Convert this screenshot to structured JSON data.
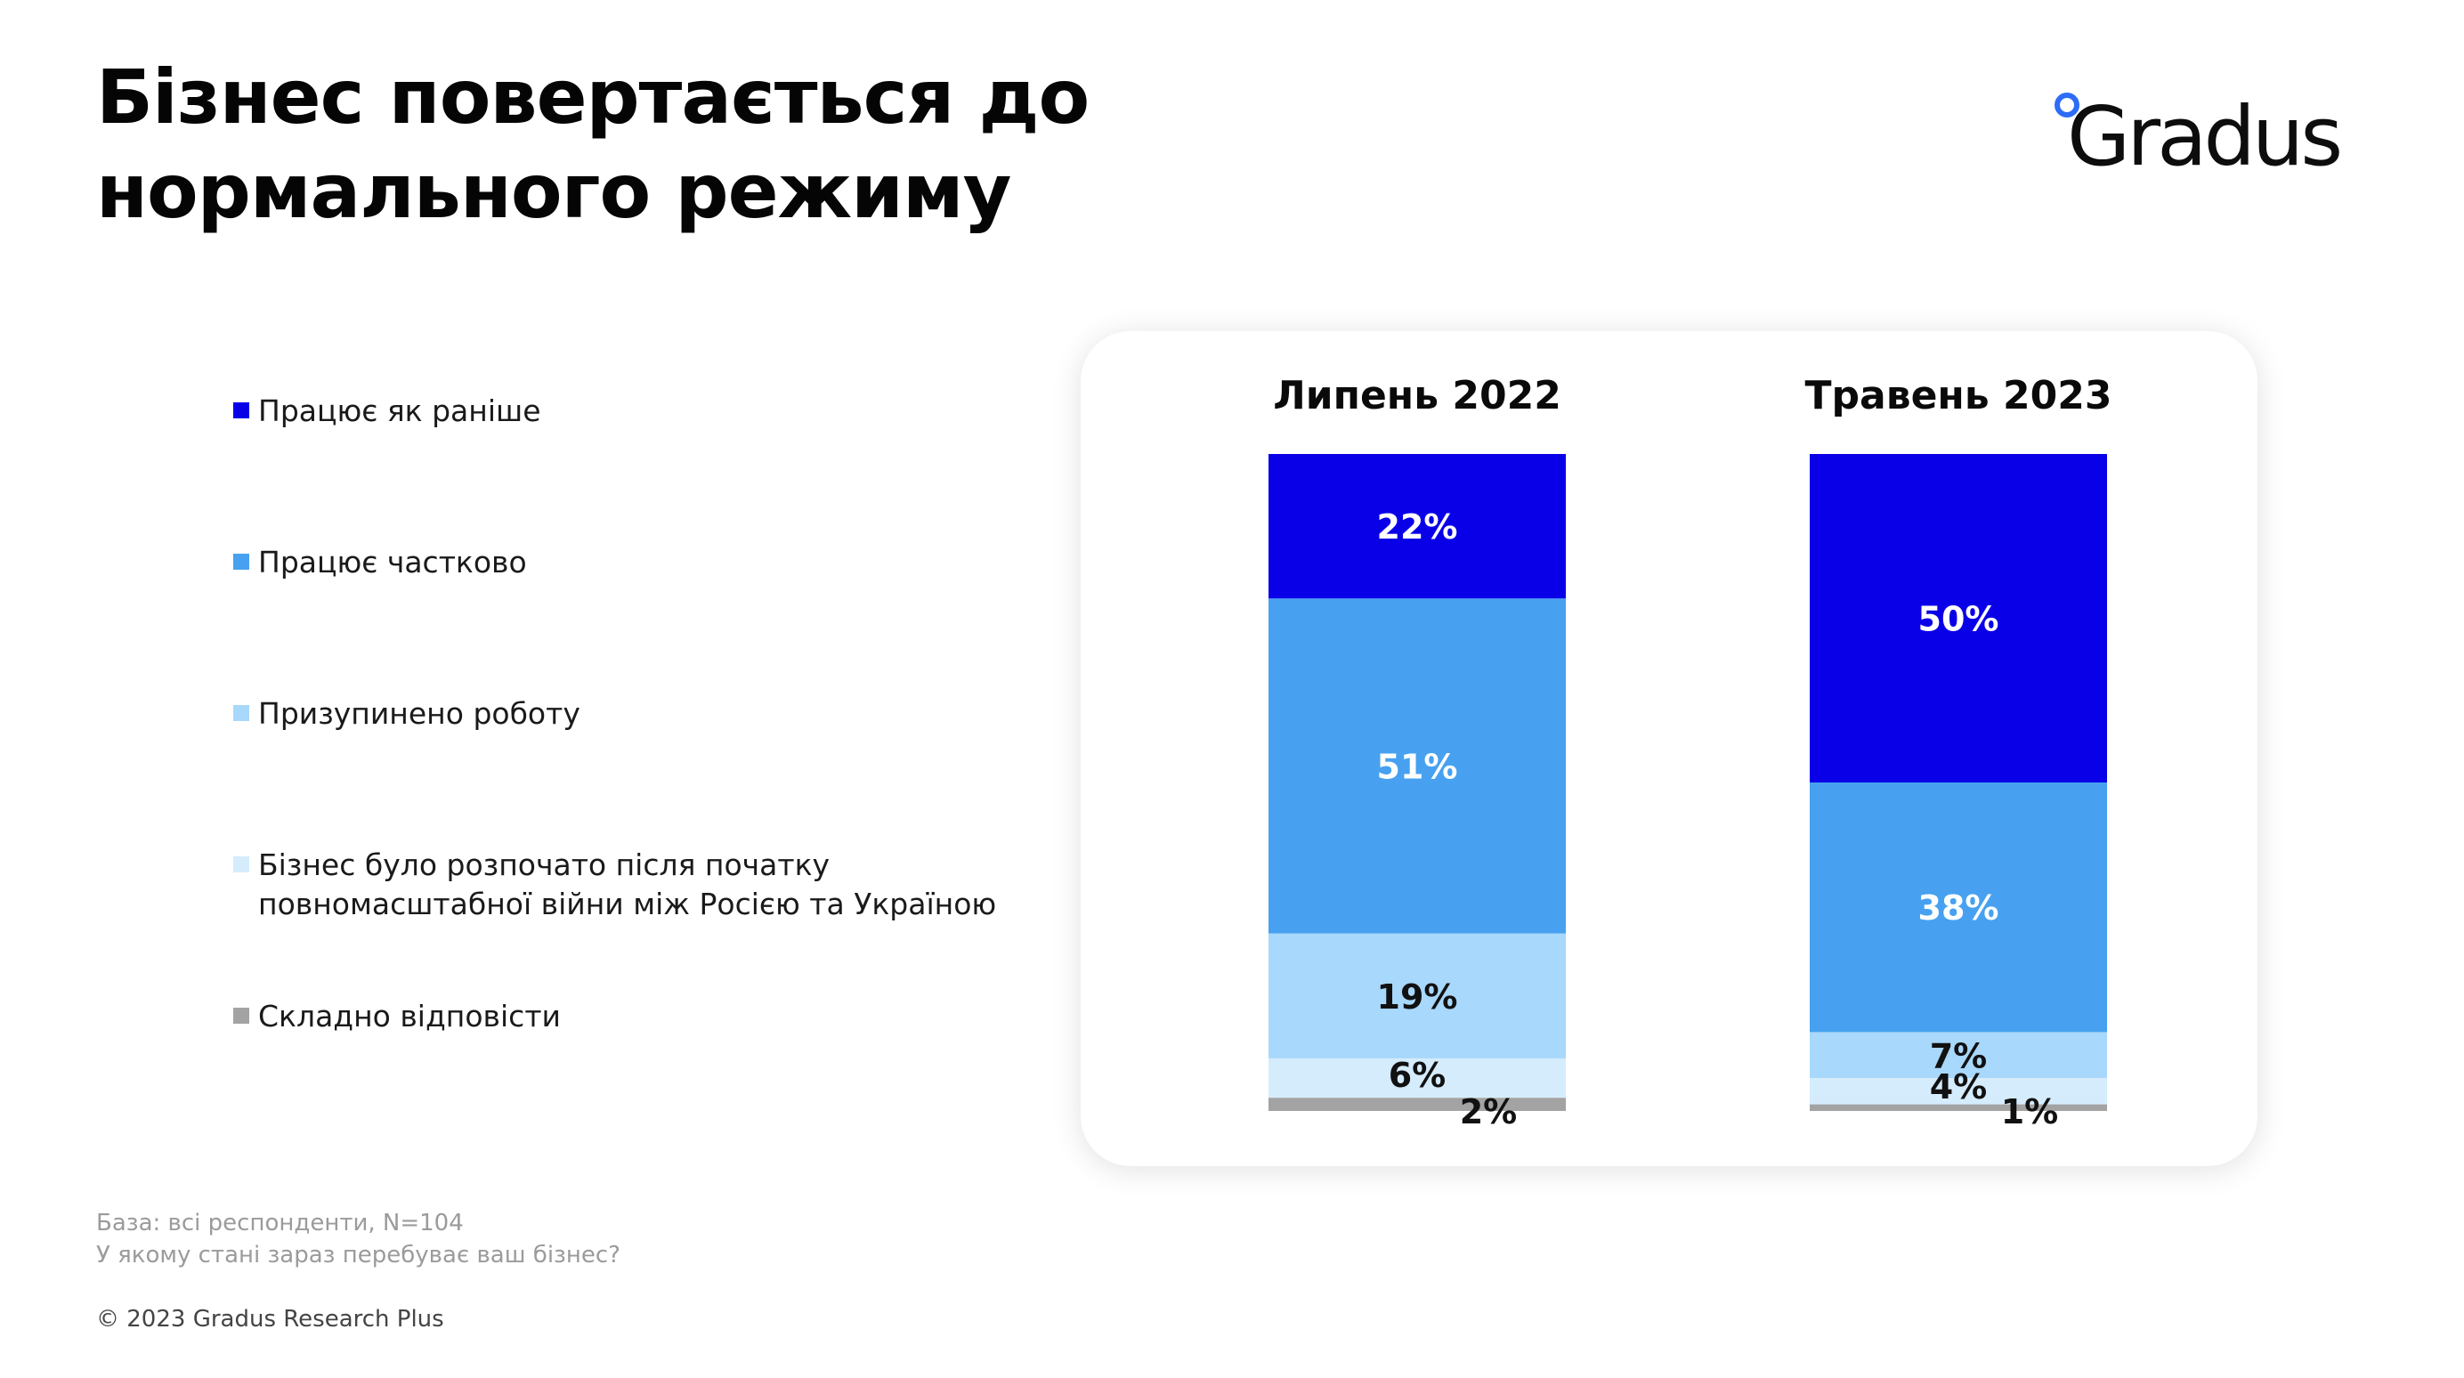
{
  "title": {
    "line1": "Бізнес повертається до",
    "line2": "нормального режиму"
  },
  "brand": {
    "logo_text": "Gradus",
    "accent": "#2d6cf6"
  },
  "legend": {
    "items": [
      {
        "label": "Працює як раніше",
        "color": "#0a00e8"
      },
      {
        "label": "Працює частково",
        "color": "#47a1f0"
      },
      {
        "label": "Призупинено роботу",
        "color": "#a8d8fb"
      },
      {
        "label_line1": "Бізнес було розпочато після початку",
        "label_line2": "повномасштабної війни між Росією та Україною",
        "color": "#d5ecfd"
      },
      {
        "label": "Складно відповісти",
        "color": "#a3a3a3"
      }
    ]
  },
  "chart_data": {
    "type": "bar",
    "stacked": true,
    "orientation": "vertical",
    "categories": [
      "Липень 2022",
      "Травень 2023"
    ],
    "series": [
      {
        "name": "Працює як раніше",
        "color": "#0a00e8",
        "label_color": "#ffffff",
        "values": [
          22,
          50
        ],
        "labels": [
          "22%",
          "50%"
        ]
      },
      {
        "name": "Працює частково",
        "color": "#47a1f0",
        "label_color": "#ffffff",
        "values": [
          51,
          38
        ],
        "labels": [
          "51%",
          "38%"
        ]
      },
      {
        "name": "Призупинено роботу",
        "color": "#a8d8fb",
        "label_color": "#111111",
        "values": [
          19,
          7
        ],
        "labels": [
          "19%",
          "7%"
        ]
      },
      {
        "name": "Бізнес було розпочато після початку повномасштабної війни між Росією та Україною",
        "color": "#d5ecfd",
        "label_color": "#111111",
        "values": [
          6,
          4
        ],
        "labels": [
          "6%",
          "4%"
        ]
      },
      {
        "name": "Складно відповісти",
        "color": "#a3a3a3",
        "label_color": "#111111",
        "values": [
          2,
          1
        ],
        "labels": [
          "2%",
          "1%"
        ]
      }
    ],
    "ylim": [
      0,
      100
    ],
    "grid": false,
    "legend_position": "left"
  },
  "notes": {
    "base": "База: всі респонденти, N=104",
    "question": "У якому стані зараз перебуває ваш бізнес?"
  },
  "copyright": "© 2023 Gradus Research Plus"
}
